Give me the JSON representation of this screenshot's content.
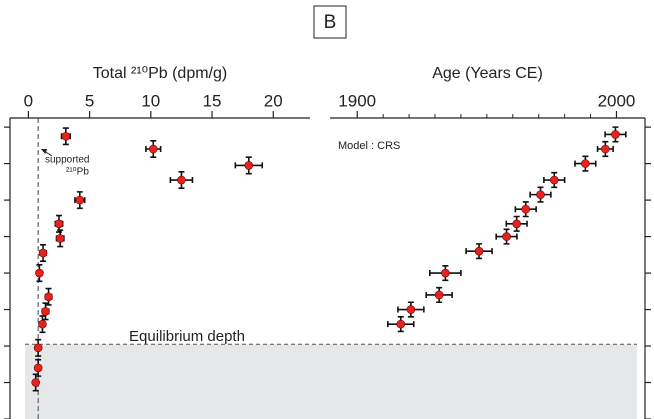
{
  "panel_label": "B",
  "chart_data": [
    {
      "type": "scatter",
      "xlabel": "Total ²¹⁰Pb (dpm/g)",
      "xlim": [
        -1.5,
        23
      ],
      "xticks": [
        0,
        5,
        10,
        15,
        20
      ],
      "ylim": [
        -0.5,
        16
      ],
      "yticks": [
        0,
        2,
        4,
        6,
        8,
        10,
        12,
        14,
        16
      ],
      "y_inverted": true,
      "y_tick_labels": false,
      "y_axis_side": "left",
      "supported": {
        "value": 0.8,
        "label": [
          "supported",
          "²¹⁰Pb"
        ]
      },
      "equilibrium": {
        "value": 11.9,
        "label": "Equilibrium depth"
      },
      "series": [
        {
          "color": "#e8221f",
          "x": [
            3.06,
            10.2,
            12.5,
            18.0,
            4.2,
            2.5,
            2.6,
            1.2,
            0.9,
            1.65,
            1.4,
            1.15,
            0.8,
            0.8,
            0.6
          ],
          "y": [
            0.5,
            1.2,
            2.9,
            2.1,
            4.0,
            5.3,
            6.1,
            6.9,
            8.0,
            9.3,
            10.1,
            10.8,
            12.1,
            13.2,
            14.0
          ],
          "xerr": [
            0.35,
            0.6,
            0.9,
            1.1,
            0.4,
            0.3,
            0.3,
            0.25,
            0.2,
            0.25,
            0.25,
            0.2,
            0.2,
            0.2,
            0.2
          ],
          "yerr": [
            0.45,
            0.45,
            0.45,
            0.45,
            0.45,
            0.45,
            0.45,
            0.45,
            0.45,
            0.45,
            0.45,
            0.45,
            0.45,
            0.45,
            0.45
          ]
        }
      ]
    },
    {
      "type": "scatter",
      "xlabel": "Age (Years CE)",
      "annotation": "Model : CRS",
      "xlim": [
        1889.5,
        2011
      ],
      "xticks": [
        1900,
        2000
      ],
      "xminorticks": [
        1910,
        1920,
        1930,
        1940,
        1950,
        1960,
        1970,
        1980,
        1990
      ],
      "ylim": [
        -0.5,
        16
      ],
      "yticks": [
        0,
        2,
        4,
        6,
        8,
        10,
        12,
        14,
        16
      ],
      "y_inverted": true,
      "y_tick_labels": false,
      "y_axis_side": "right",
      "series": [
        {
          "color": "#e8221f",
          "x": [
            1999.6,
            1995.7,
            1988,
            1976,
            1970.7,
            1965,
            1961.5,
            1957.6,
            1947,
            1934,
            1931.6,
            1920.7,
            1916.8
          ],
          "y": [
            0.4,
            1.2,
            2.0,
            2.9,
            3.7,
            4.5,
            5.3,
            6.0,
            6.8,
            8.0,
            9.2,
            10.0,
            10.8
          ],
          "xerr": [
            4,
            3,
            4,
            4,
            4,
            4,
            4,
            4,
            5,
            6,
            5,
            5,
            5
          ],
          "yerr": [
            0.4,
            0.4,
            0.4,
            0.4,
            0.4,
            0.4,
            0.4,
            0.4,
            0.4,
            0.4,
            0.4,
            0.4,
            0.4
          ]
        }
      ]
    }
  ]
}
